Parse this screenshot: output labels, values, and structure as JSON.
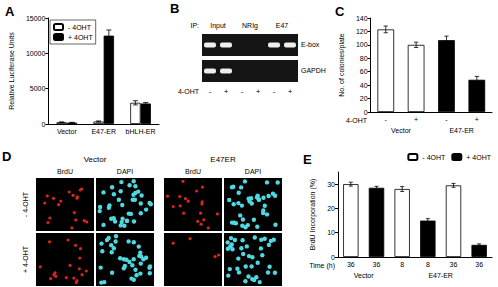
{
  "chart_data": [
    {
      "title": "A",
      "type": "bar",
      "categories": [
        "Vector",
        "E47-ER",
        "bHLH-ER"
      ],
      "ylabel": "Relative Luciferase Units",
      "ylim": [
        0,
        15000
      ],
      "yticks": [
        0,
        5000,
        10000,
        15000
      ],
      "legend": "upper left",
      "series": [
        {
          "name": "- 4OHT",
          "color": "#ffffff",
          "values": [
            250,
            350,
            3000
          ],
          "errors": [
            50,
            80,
            300
          ]
        },
        {
          "name": "+ 4OHT",
          "color": "#000000",
          "values": [
            200,
            12500,
            2900
          ],
          "errors": [
            40,
            800,
            150
          ]
        }
      ]
    },
    {
      "title": "C",
      "type": "bar",
      "categories": [
        "-",
        "+",
        "-",
        "+"
      ],
      "groups": [
        "Vector",
        "Vector",
        "E47-ER",
        "E47-ER"
      ],
      "xlabel": "4-OHT",
      "ylabel": "No. of colonies/plate",
      "ylim": [
        0,
        140
      ],
      "yticks": [
        0,
        20,
        40,
        60,
        80,
        100,
        120,
        140
      ],
      "values": [
        123,
        100,
        107,
        48
      ],
      "errors": [
        5,
        4,
        6,
        5
      ],
      "colors": [
        "#ffffff",
        "#ffffff",
        "#000000",
        "#000000"
      ]
    },
    {
      "title": "E",
      "type": "bar",
      "categories": [
        "36",
        "36",
        "8",
        "8",
        "36",
        "36"
      ],
      "groups": [
        "Vector",
        "Vector",
        "E47-ER",
        "E47-ER",
        "E47-ER",
        "E47-ER"
      ],
      "xlabel": "Time (h)",
      "ylabel": "BrdU Incorporation (%)",
      "ylim": [
        0,
        35
      ],
      "yticks": [
        0,
        10,
        20,
        30
      ],
      "legend": "upper right",
      "series": [
        {
          "name": "- 4OHT",
          "color": "#ffffff",
          "values": [
            30,
            null,
            28,
            null,
            29.5,
            null
          ],
          "errors": [
            0.8,
            null,
            1,
            null,
            0.8,
            null
          ]
        },
        {
          "name": "+ 4OHT",
          "color": "#000000",
          "values": [
            null,
            28.5,
            null,
            15,
            null,
            5
          ],
          "errors": [
            null,
            0.6,
            null,
            0.8,
            null,
            0.4
          ]
        }
      ]
    }
  ],
  "panel_b": {
    "title": "B",
    "ip_label": "IP:",
    "lanes": [
      "Input",
      "NRIg",
      "E47"
    ],
    "treatment": "4-OHT",
    "signs": [
      "-",
      "+"
    ],
    "rows": [
      "E-box",
      "GAPDH"
    ],
    "bands": [
      [
        true,
        true,
        false,
        false,
        true,
        true
      ],
      [
        true,
        true,
        false,
        false,
        false,
        false
      ]
    ]
  },
  "panel_d": {
    "title": "D",
    "groups": [
      "Vector",
      "E47ER"
    ],
    "stains": [
      "BrdU",
      "DAPI"
    ],
    "conditions": [
      "- 4-OHT",
      "+ 4-OHT"
    ]
  }
}
